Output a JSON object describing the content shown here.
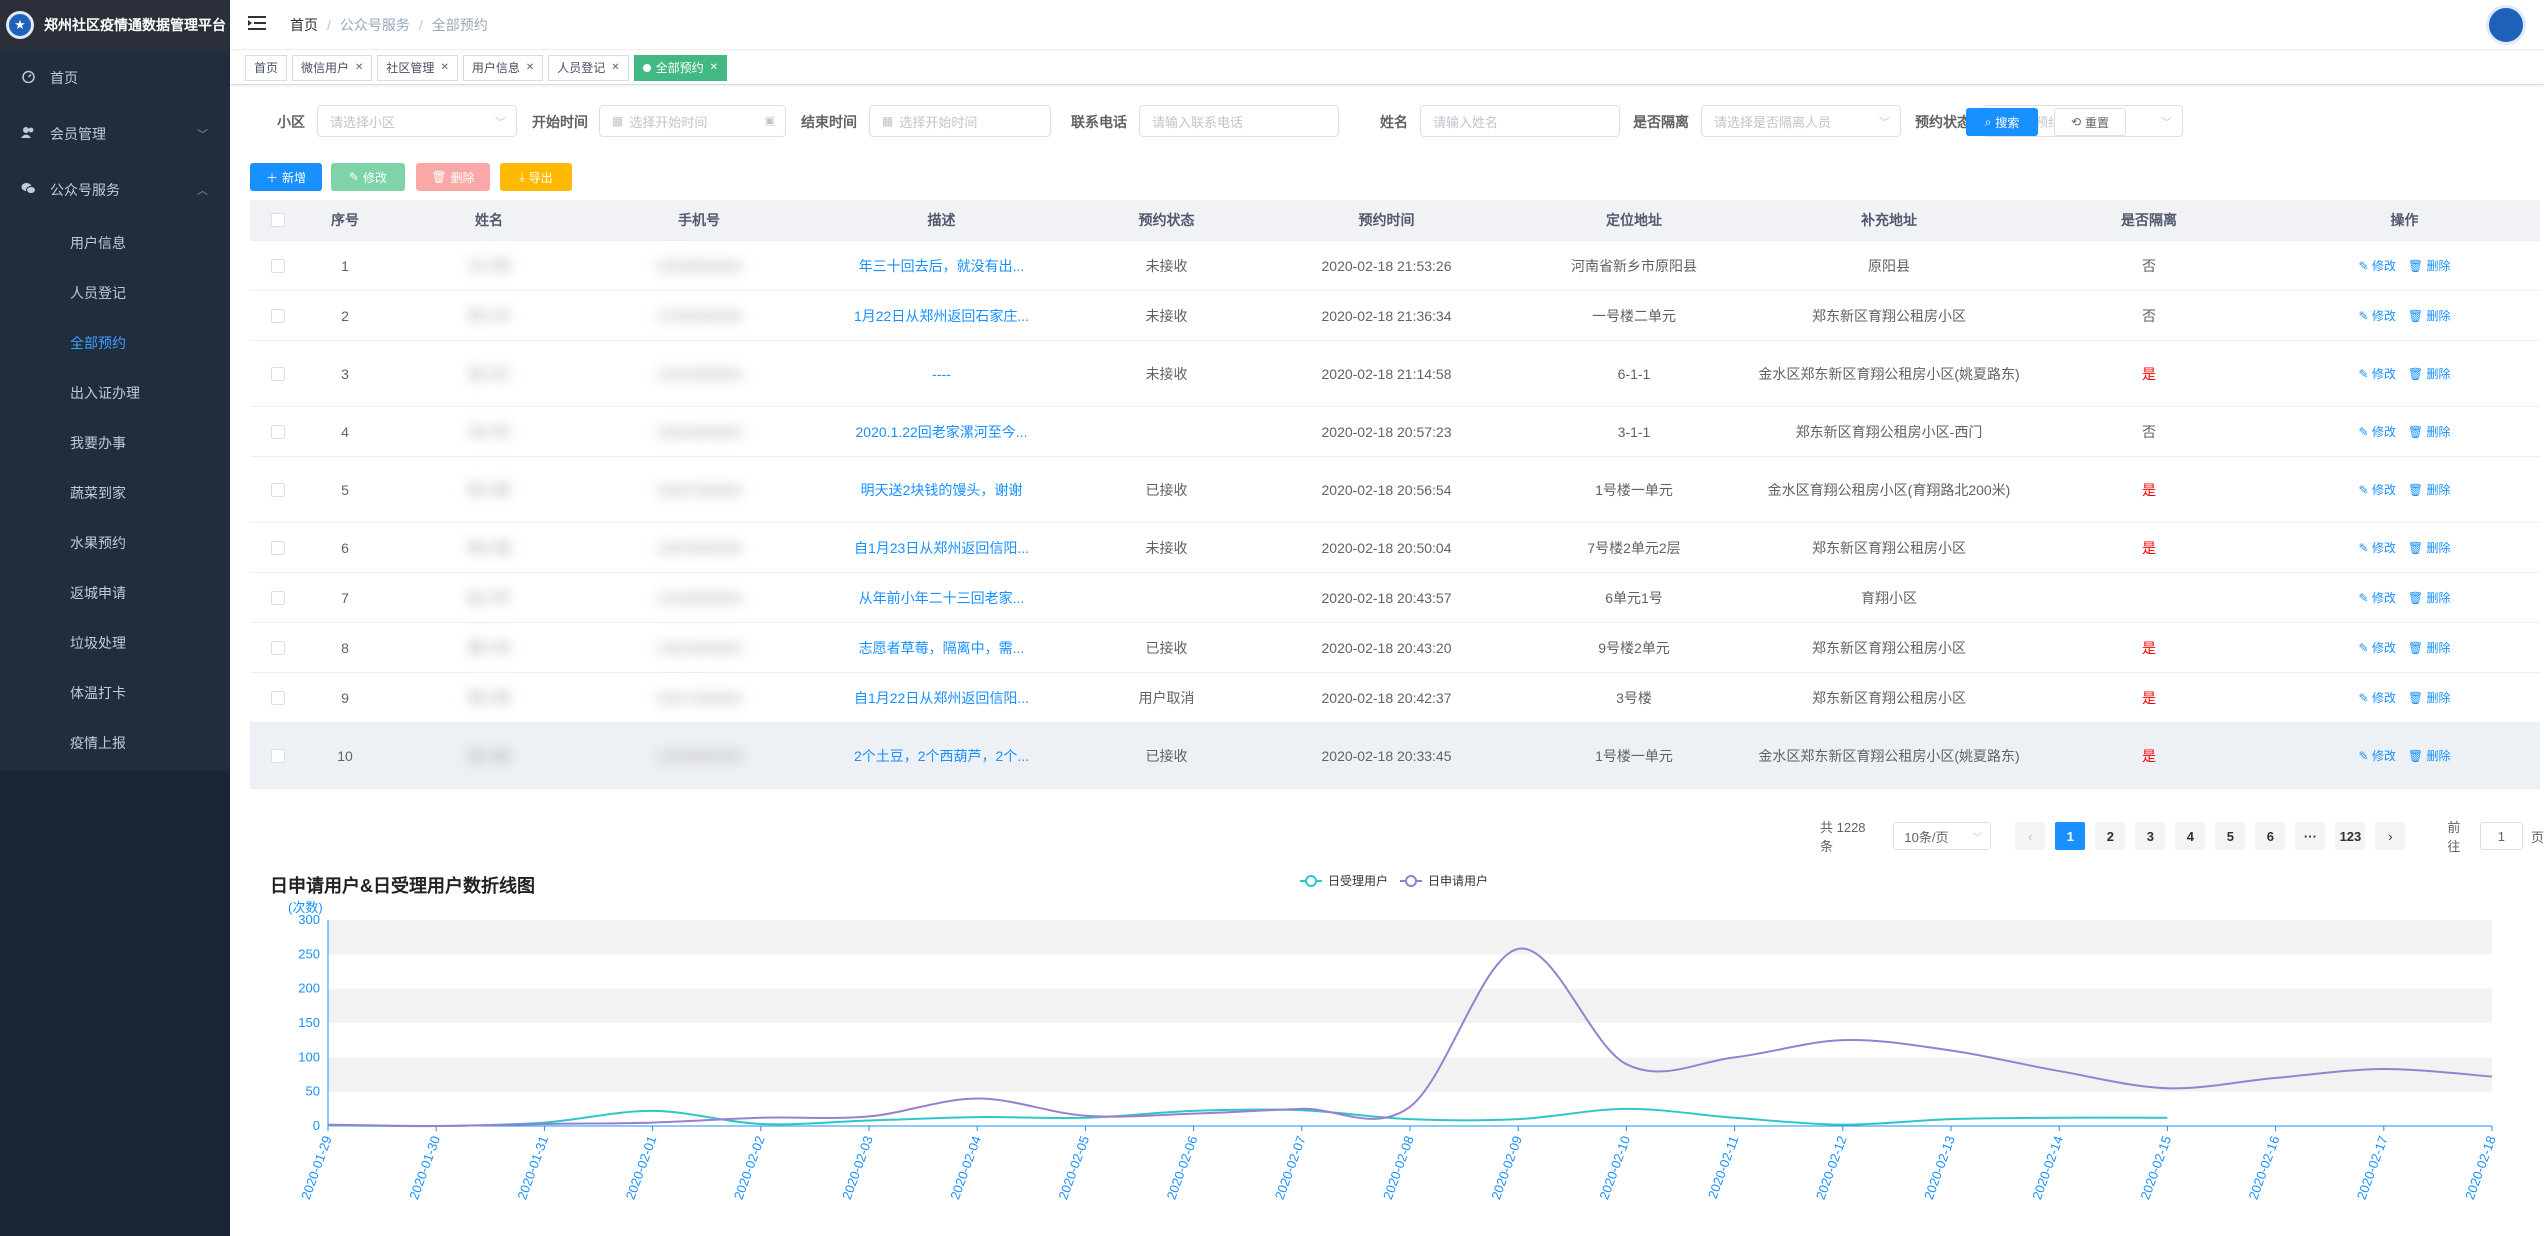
{
  "app": {
    "title": "郑州社区疫情通数据管理平台"
  },
  "sidebar": {
    "items": [
      {
        "label": "首页",
        "icon": "dashboard-icon"
      },
      {
        "label": "会员管理",
        "icon": "user-group-icon"
      },
      {
        "label": "公众号服务",
        "icon": "wechat-icon"
      }
    ],
    "sub_items": [
      {
        "label": "用户信息"
      },
      {
        "label": "人员登记"
      },
      {
        "label": "全部预约",
        "active": true
      },
      {
        "label": "出入证办理"
      },
      {
        "label": "我要办事"
      },
      {
        "label": "蔬菜到家"
      },
      {
        "label": "水果预约"
      },
      {
        "label": "返城申请"
      },
      {
        "label": "垃圾处理"
      },
      {
        "label": "体温打卡"
      },
      {
        "label": "疫情上报"
      }
    ]
  },
  "breadcrumb": [
    "首页",
    "公众号服务",
    "全部预约"
  ],
  "tags": [
    {
      "label": "首页",
      "closable": false
    },
    {
      "label": "微信用户",
      "closable": true
    },
    {
      "label": "社区管理",
      "closable": true
    },
    {
      "label": "用户信息",
      "closable": true
    },
    {
      "label": "人员登记",
      "closable": true
    },
    {
      "label": "全部预约",
      "closable": true,
      "active": true
    }
  ],
  "filters": {
    "community_label": "小区",
    "community_placeholder": "请选择小区",
    "start_label": "开始时间",
    "start_placeholder": "选择开始时间",
    "end_label": "结束时间",
    "end_placeholder": "选择开始时间",
    "phone_label": "联系电话",
    "phone_placeholder": "请输入联系电话",
    "name_label": "姓名",
    "name_placeholder": "请输入姓名",
    "isolate_label": "是否隔离",
    "isolate_placeholder": "请选择是否隔离人员",
    "status_label": "预约状态",
    "status_placeholder": "请选择预约状态",
    "search_label": "搜索",
    "reset_label": "重置"
  },
  "toolbar": {
    "add": "新增",
    "edit": "修改",
    "delete": "删除",
    "export": "导出"
  },
  "table": {
    "headers": [
      "序号",
      "姓名",
      "手机号",
      "描述",
      "预约状态",
      "预约时间",
      "定位地址",
      "补充地址",
      "是否隔离",
      "操作"
    ],
    "op_edit": "修改",
    "op_delete": "删除",
    "rows": [
      {
        "idx": "1",
        "name": "王小明",
        "phone": "15538000000",
        "desc": "年三十回去后，就没有出...",
        "status": "未接收",
        "time": "2020-02-18 21:53:26",
        "loc": "河南省新乡市原阳县",
        "addr": "原阳县",
        "iso": "否"
      },
      {
        "idx": "2",
        "name": "李小华",
        "phone": "13783000000",
        "desc": "1月22日从郑州返回石家庄...",
        "status": "未接收",
        "time": "2020-02-18 21:36:34",
        "loc": "一号楼二单元",
        "addr": "郑东新区育翔公租房小区",
        "iso": "否"
      },
      {
        "idx": "3",
        "name": "张小红",
        "phone": "13523000000",
        "desc": "----",
        "status": "未接收",
        "time": "2020-02-18 21:14:58",
        "loc": "6-1-1",
        "addr": "金水区郑东新区育翔公租房小区(姚夏路东)",
        "iso": "是"
      },
      {
        "idx": "4",
        "name": "刘小军",
        "phone": "18203000000",
        "desc": "2020.1.22回老家漯河至今...",
        "status": "",
        "time": "2020-02-18 20:57:23",
        "loc": "3-1-1",
        "addr": "郑东新区育翔公租房小区-西门",
        "iso": "否"
      },
      {
        "idx": "5",
        "name": "陈小丽",
        "phone": "18337000000",
        "desc": "明天送2块钱的馒头，谢谢",
        "status": "已接收",
        "time": "2020-02-18 20:56:54",
        "loc": "1号楼一单元",
        "addr": "金水区育翔公租房小区(育翔路北200米)",
        "iso": "是"
      },
      {
        "idx": "6",
        "name": "杨小强",
        "phone": "13676000000",
        "desc": "自1月23日从郑州返回信阳...",
        "status": "未接收",
        "time": "2020-02-18 20:50:04",
        "loc": "7号楼2单元2层",
        "addr": "郑东新区育翔公租房小区",
        "iso": "是"
      },
      {
        "idx": "7",
        "name": "赵小芳",
        "phone": "13183000000",
        "desc": "从年前小年二十三回老家...",
        "status": "",
        "time": "2020-02-18 20:43:57",
        "loc": "6单元1号",
        "addr": "育翔小区",
        "iso": ""
      },
      {
        "idx": "8",
        "name": "黄小伟",
        "phone": "13623000000",
        "desc": "志愿者草莓，隔离中，需...",
        "status": "已接收",
        "time": "2020-02-18 20:43:20",
        "loc": "9号楼2单元",
        "addr": "郑东新区育翔公租房小区",
        "iso": "是"
      },
      {
        "idx": "9",
        "name": "周小燕",
        "phone": "15517000000",
        "desc": "自1月22日从郑州返回信阳...",
        "status": "用户取消",
        "time": "2020-02-18 20:42:37",
        "loc": "3号楼",
        "addr": "郑东新区育翔公租房小区",
        "iso": "是"
      },
      {
        "idx": "10",
        "name": "吴小刚",
        "phone": "13783000000",
        "desc": "2个土豆，2个西葫芦，2个...",
        "status": "已接收",
        "time": "2020-02-18 20:33:45",
        "loc": "1号楼一单元",
        "addr": "金水区郑东新区育翔公租房小区(姚夏路东)",
        "iso": "是"
      }
    ]
  },
  "pagination": {
    "total_text": "共 1228 条",
    "page_size": "10条/页",
    "pages": [
      "1",
      "2",
      "3",
      "4",
      "5",
      "6",
      "···",
      "123"
    ],
    "goto_label": "前往",
    "goto_value": "1",
    "page_unit": "页"
  },
  "chart_data": {
    "type": "line",
    "title": "日申请用户&日受理用户数折线图",
    "ylabel": "(次数)",
    "ylim": [
      0,
      300
    ],
    "yticks": [
      0,
      50,
      100,
      150,
      200,
      250,
      300
    ],
    "x": [
      "2020-01-29",
      "2020-01-30",
      "2020-01-31",
      "2020-02-01",
      "2020-02-02",
      "2020-02-03",
      "2020-02-04",
      "2020-02-05",
      "2020-02-06",
      "2020-02-07",
      "2020-02-08",
      "2020-02-09",
      "2020-02-10",
      "2020-02-11",
      "2020-02-12",
      "2020-02-13",
      "2020-02-14",
      "2020-02-15",
      "2020-02-16",
      "2020-02-17",
      "2020-02-18"
    ],
    "series": [
      {
        "name": "日受理用户",
        "color": "#2ec7c9",
        "values": [
          1,
          0,
          5,
          22,
          3,
          8,
          13,
          12,
          22,
          23,
          10,
          10,
          25,
          12,
          2,
          10,
          12,
          12,
          null,
          null,
          null
        ]
      },
      {
        "name": "日申请用户",
        "color": "#9a7fd1",
        "values": [
          2,
          0,
          3,
          5,
          12,
          14,
          40,
          15,
          18,
          25,
          28,
          258,
          90,
          100,
          125,
          110,
          80,
          55,
          70,
          83,
          72
        ]
      }
    ],
    "legend_position": "top-center",
    "grid_bands": true
  }
}
